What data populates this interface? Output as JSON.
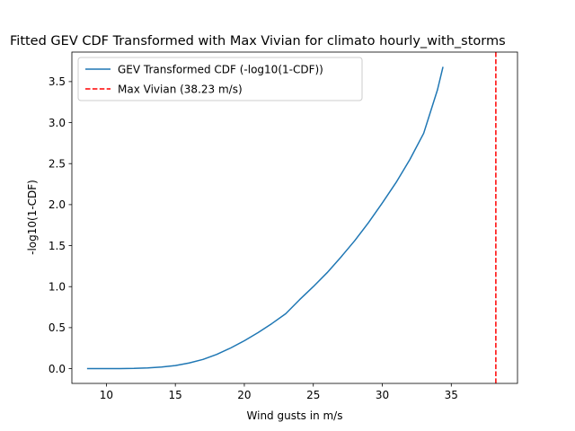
{
  "chart_data": {
    "type": "line",
    "title": "Fitted GEV CDF Transformed with Max Vivian for climato hourly_with_storms",
    "xlabel": "Wind gusts in m/s",
    "ylabel": "-log10(1-CDF)",
    "xlim": [
      7.5,
      39.8
    ],
    "ylim": [
      -0.18,
      3.86
    ],
    "xticks": [
      10,
      15,
      20,
      25,
      30,
      35
    ],
    "yticks": [
      0.0,
      0.5,
      1.0,
      1.5,
      2.0,
      2.5,
      3.0,
      3.5
    ],
    "xtick_labels": [
      "10",
      "15",
      "20",
      "25",
      "30",
      "35"
    ],
    "ytick_labels": [
      "0.0",
      "0.5",
      "1.0",
      "1.5",
      "2.0",
      "2.5",
      "3.0",
      "3.5"
    ],
    "grid": false,
    "legend_position": "top-left",
    "series": [
      {
        "name": "GEV Transformed CDF (-log10(1-CDF))",
        "color": "#1f77b4",
        "style": "solid",
        "x": [
          8.6,
          10,
          11,
          12,
          13,
          14,
          15,
          16,
          17,
          18,
          19,
          20,
          21,
          22,
          23,
          24,
          25,
          26,
          27,
          28,
          29,
          30,
          31,
          32,
          33,
          34,
          34.4
        ],
        "y": [
          0.0,
          0.0,
          0.001,
          0.003,
          0.009,
          0.02,
          0.038,
          0.069,
          0.112,
          0.174,
          0.251,
          0.34,
          0.44,
          0.55,
          0.67,
          0.84,
          1.0,
          1.17,
          1.36,
          1.56,
          1.78,
          2.02,
          2.27,
          2.55,
          2.87,
          3.4,
          3.68
        ]
      },
      {
        "name": "Max Vivian (38.23 m/s)",
        "color": "#ff0000",
        "style": "dashed",
        "vline_x": 38.23
      }
    ]
  }
}
